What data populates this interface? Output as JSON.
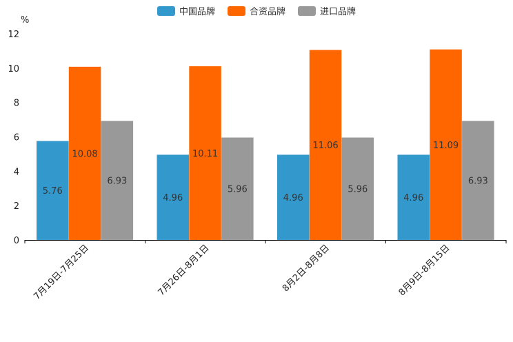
{
  "chart_data": {
    "type": "bar",
    "title": "",
    "xlabel": "",
    "ylabel": "%",
    "ylim": [
      0,
      12
    ],
    "yticks": [
      0,
      2,
      4,
      6,
      8,
      10,
      12
    ],
    "categories": [
      "7月19日-7月25日",
      "7月26日-8月1日",
      "8月2日-8月8日",
      "8月9日-8月15日"
    ],
    "series": [
      {
        "name": "中国品牌",
        "color": "#3399cc",
        "values": [
          5.76,
          4.96,
          4.96,
          4.96
        ],
        "labels": [
          "5.76",
          "4.96",
          "4.96",
          "4.96"
        ]
      },
      {
        "name": "合资品牌",
        "color": "#ff6600",
        "values": [
          10.08,
          10.11,
          11.06,
          11.09
        ],
        "labels": [
          "10.08",
          "10.11",
          "11.06",
          "11.09"
        ]
      },
      {
        "name": "进口品牌",
        "color": "#999999",
        "values": [
          6.93,
          5.96,
          5.96,
          6.93
        ],
        "labels": [
          "6.93",
          "5.96",
          "5.96",
          "6.93"
        ]
      }
    ],
    "legend_position": "top-center"
  }
}
